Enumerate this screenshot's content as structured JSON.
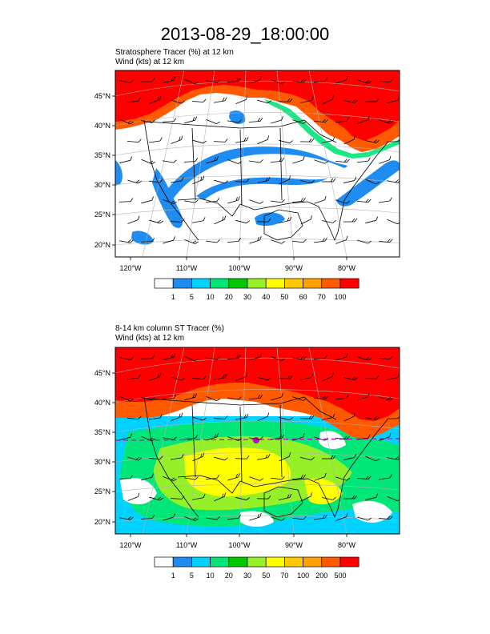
{
  "figure": {
    "title": "2013-08-29_18:00:00"
  },
  "panels": [
    {
      "label_line1": "Stratosphere Tracer   (%)    at   12 km",
      "label_line2": "Wind   (kts)     at   12 km"
    },
    {
      "label_line1": "8-14 km column ST Tracer   (%)",
      "label_line2": "Wind   (kts)     at   12 km"
    }
  ],
  "colors": {
    "levels": [
      "#ffffff",
      "#1e8cf0",
      "#00d2ff",
      "#00e678",
      "#00c800",
      "#96f028",
      "#ffff00",
      "#ffc800",
      "#ffa000",
      "#ff5a00",
      "#ff0000"
    ],
    "map_fill": "#ffffff",
    "coast": "#000000",
    "graticule": "#b4b4b4",
    "wind_barb": "#000000",
    "pole_marker": "#c800c8"
  },
  "chart_data": [
    {
      "type": "heatmap",
      "map": "contiguous United States and surroundings",
      "fields": [
        "Stratosphere Tracer (%) at 12 km",
        "Wind (kts) at 12 km"
      ],
      "lat_ticks": [
        "20°N",
        "25°N",
        "30°N",
        "35°N",
        "40°N",
        "45°N"
      ],
      "lon_ticks": [
        "120°W",
        "110°W",
        "100°W",
        "90°W",
        "80°W"
      ],
      "legend_bins": [
        "1",
        "5",
        "10",
        "20",
        "30",
        "40",
        "50",
        "60",
        "70",
        "100"
      ],
      "legend_placement": "bottom",
      "wind_barbs": true,
      "grid": true
    },
    {
      "type": "heatmap",
      "map": "contiguous United States and surroundings",
      "fields": [
        "8-14 km column ST Tracer (%)",
        "Wind (kts) at 12 km"
      ],
      "lat_ticks": [
        "20°N",
        "25°N",
        "30°N",
        "35°N",
        "40°N",
        "45°N"
      ],
      "lon_ticks": [
        "120°W",
        "110°W",
        "100°W",
        "90°W",
        "80°W"
      ],
      "legend_bins": [
        "1",
        "5",
        "10",
        "20",
        "30",
        "50",
        "70",
        "100",
        "200",
        "500"
      ],
      "legend_placement": "bottom",
      "wind_barbs": true,
      "grid": true
    }
  ]
}
